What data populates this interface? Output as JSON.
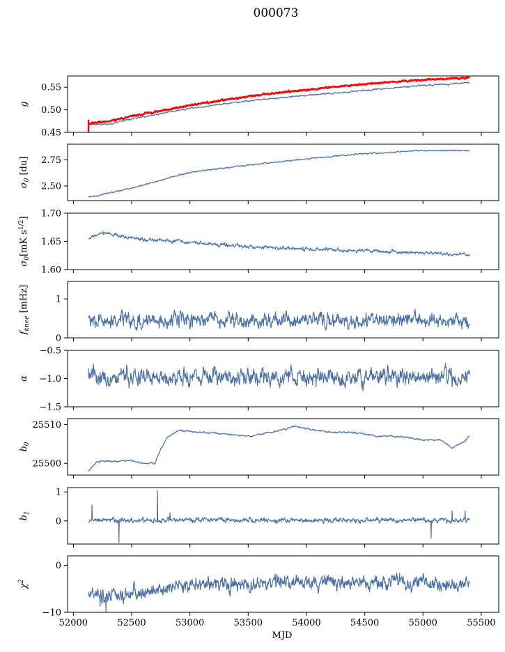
{
  "chart_data": {
    "type": "line",
    "title": "000073",
    "xlabel": "MJD",
    "xlim": [
      51950,
      55650
    ],
    "xticks": [
      52000,
      52500,
      53000,
      53500,
      54000,
      54500,
      55000,
      55500
    ],
    "x_range": [
      52130,
      55400
    ],
    "colors": {
      "series": "#4c72a8",
      "highlight": "#ff0000"
    },
    "panels": [
      {
        "ylabel": "g",
        "ylim": [
          0.45,
          0.575
        ],
        "yticks": [
          0.45,
          0.5,
          0.55
        ],
        "ytick_labels": [
          "0.45",
          "0.50",
          "0.55"
        ],
        "series": [
          {
            "color": "#4c72a8",
            "trend": [
              [
                52130,
                0.468
              ],
              [
                52300,
                0.468
              ],
              [
                52600,
                0.485
              ],
              [
                53000,
                0.503
              ],
              [
                53500,
                0.52
              ],
              [
                54000,
                0.532
              ],
              [
                54500,
                0.543
              ],
              [
                55000,
                0.554
              ],
              [
                55400,
                0.56
              ]
            ],
            "noise": 0.001
          },
          {
            "color": "#ff0000",
            "trend": [
              [
                52130,
                0.47
              ],
              [
                52300,
                0.474
              ],
              [
                52600,
                0.491
              ],
              [
                53000,
                0.51
              ],
              [
                53500,
                0.53
              ],
              [
                54000,
                0.545
              ],
              [
                54500,
                0.557
              ],
              [
                55000,
                0.566
              ],
              [
                55400,
                0.571
              ]
            ],
            "noise": 0.0012
          }
        ]
      },
      {
        "ylabel": "σ0 [du]",
        "ylim": [
          2.36,
          2.9
        ],
        "yticks": [
          2.5,
          2.75
        ],
        "ytick_labels": [
          "2.50",
          "2.75"
        ],
        "series": [
          {
            "color": "#4c72a8",
            "trend": [
              [
                52130,
                2.39
              ],
              [
                52500,
                2.48
              ],
              [
                53000,
                2.63
              ],
              [
                53500,
                2.7
              ],
              [
                54000,
                2.76
              ],
              [
                54500,
                2.81
              ],
              [
                55000,
                2.84
              ],
              [
                55400,
                2.84
              ]
            ],
            "noise": 0.004
          }
        ]
      },
      {
        "ylabel": "σ0[mK s^1/2]",
        "ylim": [
          1.6,
          1.7
        ],
        "yticks": [
          1.6,
          1.65,
          1.7
        ],
        "ytick_labels": [
          "1.60",
          "1.65",
          "1.70"
        ],
        "series": [
          {
            "color": "#4c72a8",
            "trend": [
              [
                52130,
                1.655
              ],
              [
                52250,
                1.665
              ],
              [
                52500,
                1.656
              ],
              [
                53000,
                1.648
              ],
              [
                53500,
                1.641
              ],
              [
                54000,
                1.636
              ],
              [
                54500,
                1.633
              ],
              [
                55000,
                1.63
              ],
              [
                55400,
                1.625
              ]
            ],
            "noise": 0.0018
          }
        ]
      },
      {
        "ylabel": "f_knee [mHz]",
        "ylim": [
          0,
          1.45
        ],
        "yticks": [
          0,
          1
        ],
        "ytick_labels": [
          "0",
          "1"
        ],
        "series": [
          {
            "color": "#4c72a8",
            "trend": [
              [
                52130,
                0.45
              ],
              [
                55400,
                0.45
              ]
            ],
            "noise": 0.11
          }
        ]
      },
      {
        "ylabel": "α",
        "ylim": [
          -1.5,
          -0.5
        ],
        "yticks": [
          -1.5,
          -1.0,
          -0.5
        ],
        "ytick_labels": [
          "−1.5",
          "−1.0",
          "−0.5"
        ],
        "series": [
          {
            "color": "#4c72a8",
            "trend": [
              [
                52130,
                -0.98
              ],
              [
                55400,
                -0.98
              ]
            ],
            "noise": 0.09
          }
        ]
      },
      {
        "ylabel": "b0",
        "ylim": [
          25497,
          25511.5
        ],
        "yticks": [
          25500,
          25510
        ],
        "ytick_labels": [
          "25500",
          "25510"
        ],
        "series": [
          {
            "color": "#4c72a8",
            "trend": [
              [
                52130,
                25498
              ],
              [
                52200,
                25500.5
              ],
              [
                52400,
                25500.5
              ],
              [
                52500,
                25500.8
              ],
              [
                52600,
                25500
              ],
              [
                52700,
                25500
              ],
              [
                52740,
                25503
              ],
              [
                52800,
                25506.5
              ],
              [
                52900,
                25508.5
              ],
              [
                53100,
                25508
              ],
              [
                53300,
                25507.5
              ],
              [
                53500,
                25507
              ],
              [
                53700,
                25508
              ],
              [
                53900,
                25509.5
              ],
              [
                54000,
                25509
              ],
              [
                54200,
                25508
              ],
              [
                54400,
                25508
              ],
              [
                54600,
                25507
              ],
              [
                54800,
                25507
              ],
              [
                55000,
                25506
              ],
              [
                55150,
                25506
              ],
              [
                55250,
                25504
              ],
              [
                55350,
                25505.5
              ],
              [
                55400,
                25507
              ]
            ],
            "noise": 0.12
          }
        ]
      },
      {
        "ylabel": "b1",
        "ylim": [
          -0.8,
          1.15
        ],
        "yticks": [
          0,
          1
        ],
        "ytick_labels": [
          "0",
          "1"
        ],
        "series": [
          {
            "color": "#4c72a8",
            "trend": [
              [
                52130,
                0.02
              ],
              [
                55400,
                0.02
              ]
            ],
            "noise": 0.05,
            "spikes": [
              [
                52160,
                0.55
              ],
              [
                52390,
                -0.75
              ],
              [
                52720,
                1.05
              ],
              [
                52830,
                0.28
              ],
              [
                55070,
                -0.6
              ],
              [
                55250,
                0.35
              ],
              [
                55360,
                0.35
              ]
            ]
          }
        ]
      },
      {
        "ylabel": "χ²",
        "ylim": [
          -10,
          2
        ],
        "yticks": [
          -10,
          0
        ],
        "ytick_labels": [
          "−10",
          "0"
        ],
        "series": [
          {
            "color": "#4c72a8",
            "trend": [
              [
                52130,
                -5.5
              ],
              [
                52300,
                -7
              ],
              [
                52500,
                -6
              ],
              [
                52800,
                -5
              ],
              [
                53000,
                -4
              ],
              [
                53500,
                -4
              ],
              [
                54000,
                -3.5
              ],
              [
                54500,
                -3.5
              ],
              [
                55000,
                -3.5
              ],
              [
                55400,
                -4
              ]
            ],
            "noise": 0.9,
            "spikes": [
              [
                52280,
                -10
              ],
              [
                52230,
                -8.8
              ]
            ]
          }
        ]
      }
    ]
  }
}
